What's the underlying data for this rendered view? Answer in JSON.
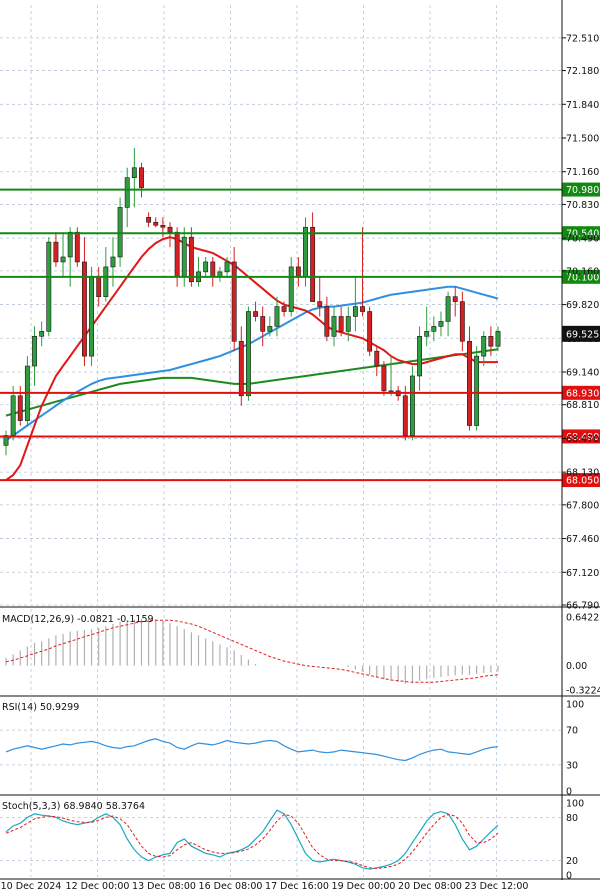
{
  "colors": {
    "bull": "#2e9e3e",
    "bear": "#d42020",
    "ma_fast": "#e01818",
    "ma_mid": "#2f8fe0",
    "ma_slow": "#1e8a1e",
    "grid": "#b9c6d6",
    "support_line": "#e01010",
    "resistance_line": "#128a12",
    "price_label_bg": "#111111",
    "macd_signal": "#e02020",
    "macd_hist": "#b0b0b0",
    "rsi": "#2f8fe0",
    "stoch_k": "#19a9c0",
    "stoch_d": "#e02020"
  },
  "chart_data": {
    "type": "candlestick",
    "instrument_panel": {
      "ylim": [
        66.79,
        72.67
      ],
      "y_ticks": [
        "72.510",
        "72.180",
        "71.840",
        "71.500",
        "71.160",
        "70.830",
        "70.490",
        "70.160",
        "69.820",
        "69.480",
        "69.140",
        "68.810",
        "68.470",
        "68.130",
        "67.800",
        "67.460",
        "67.120",
        "66.790"
      ],
      "x_ticks": [
        "10 Dec 2024",
        "12 Dec 00:00",
        "13 Dec 08:00",
        "16 Dec 08:00",
        "17 Dec 16:00",
        "19 Dec 00:00",
        "20 Dec 08:00",
        "23 Dec 12:00"
      ],
      "current_price": "69.525",
      "candles": [
        [
          68.4,
          68.55,
          68.3,
          68.5
        ],
        [
          68.5,
          69.0,
          68.45,
          68.9
        ],
        [
          68.9,
          69.0,
          68.6,
          68.65
        ],
        [
          68.65,
          69.3,
          68.6,
          69.2
        ],
        [
          69.2,
          69.6,
          69.0,
          69.5
        ],
        [
          69.5,
          69.65,
          69.4,
          69.55
        ],
        [
          69.55,
          70.5,
          69.5,
          70.45
        ],
        [
          70.45,
          70.55,
          70.2,
          70.25
        ],
        [
          70.25,
          70.55,
          70.1,
          70.3
        ],
        [
          70.3,
          70.6,
          70.0,
          70.55
        ],
        [
          70.55,
          70.6,
          70.2,
          70.25
        ],
        [
          70.25,
          70.5,
          69.2,
          69.3
        ],
        [
          69.3,
          70.2,
          69.2,
          70.1
        ],
        [
          70.1,
          70.2,
          69.8,
          69.9
        ],
        [
          69.9,
          70.4,
          69.85,
          70.2
        ],
        [
          70.2,
          70.5,
          70.0,
          70.3
        ],
        [
          70.3,
          70.9,
          70.2,
          70.8
        ],
        [
          70.8,
          71.2,
          70.6,
          71.1
        ],
        [
          71.1,
          71.4,
          70.8,
          71.2
        ],
        [
          71.2,
          71.25,
          70.9,
          71.0
        ],
        [
          70.7,
          70.75,
          70.6,
          70.65
        ],
        [
          70.65,
          70.7,
          70.6,
          70.62
        ],
        [
          70.62,
          70.7,
          70.5,
          70.6
        ],
        [
          70.6,
          70.65,
          70.4,
          70.55
        ],
        [
          70.55,
          70.6,
          70.0,
          70.1
        ],
        [
          70.1,
          70.6,
          70.0,
          70.5
        ],
        [
          70.5,
          70.6,
          70.0,
          70.05
        ],
        [
          70.05,
          70.3,
          70.0,
          70.15
        ],
        [
          70.15,
          70.3,
          70.1,
          70.25
        ],
        [
          70.25,
          70.3,
          70.0,
          70.1
        ],
        [
          70.1,
          70.2,
          70.05,
          70.15
        ],
        [
          70.15,
          70.3,
          70.1,
          70.25
        ],
        [
          70.25,
          70.4,
          69.35,
          69.45
        ],
        [
          69.45,
          69.6,
          68.8,
          68.9
        ],
        [
          68.9,
          69.8,
          68.85,
          69.75
        ],
        [
          69.75,
          69.85,
          69.65,
          69.7
        ],
        [
          69.7,
          69.8,
          69.4,
          69.55
        ],
        [
          69.55,
          69.7,
          69.5,
          69.6
        ],
        [
          69.6,
          69.9,
          69.5,
          69.8
        ],
        [
          69.8,
          69.85,
          69.7,
          69.75
        ],
        [
          69.75,
          70.3,
          69.7,
          70.2
        ],
        [
          70.2,
          70.3,
          70.0,
          70.1
        ],
        [
          70.1,
          70.7,
          70.0,
          70.6
        ],
        [
          70.6,
          70.75,
          69.9,
          69.85
        ],
        [
          69.85,
          70.1,
          69.7,
          69.8
        ],
        [
          69.8,
          69.9,
          69.45,
          69.5
        ],
        [
          69.5,
          69.8,
          69.4,
          69.7
        ],
        [
          69.7,
          69.8,
          69.5,
          69.55
        ],
        [
          69.55,
          69.8,
          69.45,
          69.7
        ],
        [
          69.7,
          70.1,
          69.55,
          69.8
        ],
        [
          69.8,
          70.6,
          69.7,
          69.75
        ],
        [
          69.75,
          69.8,
          69.3,
          69.35
        ],
        [
          69.35,
          69.4,
          69.1,
          69.2
        ],
        [
          69.2,
          69.25,
          68.9,
          68.95
        ],
        [
          68.95,
          69.3,
          68.9,
          68.95
        ],
        [
          68.95,
          69.0,
          68.85,
          68.9
        ],
        [
          68.9,
          69.0,
          68.45,
          68.5
        ],
        [
          68.5,
          69.2,
          68.45,
          69.1
        ],
        [
          69.1,
          69.6,
          68.95,
          69.5
        ],
        [
          69.5,
          69.8,
          69.4,
          69.55
        ],
        [
          69.55,
          69.7,
          69.45,
          69.6
        ],
        [
          69.6,
          69.75,
          69.5,
          69.65
        ],
        [
          69.65,
          69.95,
          69.5,
          69.9
        ],
        [
          69.9,
          70.0,
          69.7,
          69.85
        ],
        [
          69.85,
          69.95,
          69.35,
          69.45
        ],
        [
          69.45,
          69.6,
          68.55,
          68.6
        ],
        [
          68.6,
          69.4,
          68.55,
          69.3
        ],
        [
          69.3,
          69.55,
          69.2,
          69.5
        ],
        [
          69.5,
          69.6,
          69.3,
          69.4
        ],
        [
          69.4,
          69.6,
          69.35,
          69.55
        ]
      ],
      "ma_fast": [
        68.05,
        68.1,
        68.2,
        68.4,
        68.6,
        68.8,
        68.95,
        69.1,
        69.2,
        69.3,
        69.4,
        69.5,
        69.6,
        69.7,
        69.8,
        69.9,
        70.0,
        70.1,
        70.2,
        70.3,
        70.38,
        70.44,
        70.48,
        70.5,
        70.48,
        70.44,
        70.4,
        70.38,
        70.36,
        70.34,
        70.3,
        70.26,
        70.22,
        70.16,
        70.1,
        70.04,
        69.98,
        69.92,
        69.86,
        69.82,
        69.8,
        69.78,
        69.76,
        69.72,
        69.66,
        69.6,
        69.56,
        69.54,
        69.52,
        69.5,
        69.48,
        69.44,
        69.4,
        69.36,
        69.3,
        69.26,
        69.24,
        69.22,
        69.22,
        69.24,
        69.26,
        69.28,
        69.3,
        69.32,
        69.32,
        69.28,
        69.24,
        69.24,
        69.24,
        69.24
      ],
      "ma_mid": [
        68.45,
        68.5,
        68.55,
        68.6,
        68.65,
        68.7,
        68.75,
        68.8,
        68.85,
        68.9,
        68.94,
        68.98,
        69.02,
        69.05,
        69.07,
        69.08,
        69.09,
        69.1,
        69.11,
        69.12,
        69.13,
        69.14,
        69.15,
        69.16,
        69.18,
        69.2,
        69.22,
        69.24,
        69.26,
        69.28,
        69.3,
        69.33,
        69.36,
        69.39,
        69.42,
        69.46,
        69.5,
        69.54,
        69.58,
        69.62,
        69.66,
        69.7,
        69.74,
        69.77,
        69.79,
        69.8,
        69.8,
        69.81,
        69.82,
        69.83,
        69.84,
        69.86,
        69.88,
        69.9,
        69.92,
        69.93,
        69.94,
        69.95,
        69.96,
        69.97,
        69.98,
        69.99,
        70.0,
        70.0,
        69.98,
        69.96,
        69.94,
        69.92,
        69.9,
        69.88
      ],
      "ma_slow": [
        68.7,
        68.72,
        68.74,
        68.76,
        68.78,
        68.8,
        68.82,
        68.84,
        68.86,
        68.88,
        68.9,
        68.92,
        68.94,
        68.96,
        68.98,
        69.0,
        69.02,
        69.03,
        69.04,
        69.05,
        69.06,
        69.07,
        69.08,
        69.08,
        69.08,
        69.08,
        69.08,
        69.07,
        69.06,
        69.05,
        69.04,
        69.03,
        69.02,
        69.02,
        69.02,
        69.03,
        69.04,
        69.05,
        69.06,
        69.07,
        69.08,
        69.09,
        69.1,
        69.11,
        69.12,
        69.13,
        69.14,
        69.15,
        69.16,
        69.17,
        69.18,
        69.19,
        69.2,
        69.21,
        69.22,
        69.23,
        69.24,
        69.25,
        69.26,
        69.27,
        69.28,
        69.29,
        69.3,
        69.31,
        69.32,
        69.33,
        69.34,
        69.35,
        69.36,
        69.37
      ],
      "levels": [
        {
          "value": 70.98,
          "label": "70.980",
          "kind": "resistance"
        },
        {
          "value": 70.54,
          "label": "70.540",
          "kind": "resistance"
        },
        {
          "value": 70.1,
          "label": "70.100",
          "kind": "resistance"
        },
        {
          "value": 68.93,
          "label": "68.930",
          "kind": "support"
        },
        {
          "value": 68.49,
          "label": "68.490",
          "kind": "support"
        },
        {
          "value": 68.05,
          "label": "68.050",
          "kind": "support"
        }
      ]
    },
    "macd": {
      "label": "MACD(12,26,9) -0.0821 -0.1159",
      "ylim": [
        -0.3224,
        0.6422
      ],
      "ticks": [
        "0.6422",
        "0.00",
        "-0.3224"
      ],
      "hist": [
        0.1,
        0.15,
        0.2,
        0.25,
        0.3,
        0.32,
        0.36,
        0.4,
        0.42,
        0.45,
        0.46,
        0.47,
        0.48,
        0.5,
        0.52,
        0.55,
        0.58,
        0.6,
        0.61,
        0.62,
        0.62,
        0.61,
        0.59,
        0.56,
        0.52,
        0.48,
        0.44,
        0.4,
        0.36,
        0.32,
        0.28,
        0.24,
        0.2,
        0.14,
        0.08,
        0.02,
        0.0,
        0.0,
        0.0,
        0.0,
        0.0,
        0.0,
        0.0,
        0.0,
        0.0,
        0.0,
        0.0,
        0.0,
        -0.02,
        -0.05,
        -0.08,
        -0.12,
        -0.15,
        -0.18,
        -0.2,
        -0.22,
        -0.24,
        -0.22,
        -0.2,
        -0.18,
        -0.16,
        -0.15,
        -0.14,
        -0.13,
        -0.12,
        -0.12,
        -0.11,
        -0.1,
        -0.09,
        -0.08
      ],
      "signal": [
        0.05,
        0.07,
        0.1,
        0.13,
        0.16,
        0.19,
        0.22,
        0.26,
        0.29,
        0.32,
        0.35,
        0.38,
        0.41,
        0.44,
        0.47,
        0.5,
        0.52,
        0.54,
        0.56,
        0.58,
        0.59,
        0.6,
        0.6,
        0.6,
        0.59,
        0.57,
        0.55,
        0.52,
        0.48,
        0.44,
        0.4,
        0.36,
        0.32,
        0.28,
        0.24,
        0.2,
        0.16,
        0.12,
        0.09,
        0.06,
        0.04,
        0.02,
        0.0,
        -0.01,
        -0.02,
        -0.03,
        -0.04,
        -0.05,
        -0.07,
        -0.09,
        -0.11,
        -0.13,
        -0.15,
        -0.17,
        -0.19,
        -0.2,
        -0.21,
        -0.22,
        -0.22,
        -0.22,
        -0.22,
        -0.21,
        -0.2,
        -0.19,
        -0.18,
        -0.17,
        -0.16,
        -0.14,
        -0.13,
        -0.12
      ]
    },
    "rsi": {
      "label": "RSI(14) 50.9299",
      "ylim": [
        0,
        100
      ],
      "ticks": [
        "100",
        "70",
        "30",
        "0"
      ],
      "values": [
        45,
        48,
        50,
        52,
        50,
        48,
        50,
        52,
        54,
        53,
        55,
        56,
        57,
        55,
        52,
        50,
        49,
        51,
        52,
        55,
        58,
        60,
        57,
        55,
        50,
        48,
        52,
        55,
        54,
        53,
        55,
        58,
        56,
        55,
        54,
        55,
        57,
        58,
        57,
        52,
        48,
        45,
        46,
        47,
        45,
        44,
        45,
        47,
        46,
        45,
        44,
        43,
        42,
        40,
        38,
        36,
        35,
        38,
        42,
        45,
        47,
        48,
        45,
        44,
        43,
        42,
        45,
        48,
        50,
        51
      ]
    },
    "stoch": {
      "label": "Stoch(5,3,3) 68.9840 58.3764",
      "ylim": [
        0,
        100
      ],
      "ticks": [
        "100",
        "80",
        "20",
        "0"
      ],
      "k": [
        60,
        68,
        72,
        80,
        85,
        83,
        82,
        80,
        75,
        72,
        70,
        72,
        74,
        80,
        85,
        80,
        70,
        50,
        35,
        25,
        20,
        25,
        28,
        30,
        45,
        50,
        40,
        35,
        30,
        28,
        25,
        30,
        32,
        35,
        40,
        50,
        60,
        75,
        90,
        85,
        70,
        50,
        30,
        20,
        18,
        20,
        22,
        20,
        18,
        15,
        10,
        8,
        10,
        12,
        15,
        20,
        30,
        45,
        60,
        75,
        85,
        88,
        85,
        70,
        50,
        35,
        40,
        50,
        60,
        68.98
      ],
      "d": [
        58,
        62,
        66,
        72,
        78,
        80,
        82,
        81,
        79,
        76,
        74,
        73,
        73,
        76,
        80,
        82,
        78,
        70,
        55,
        40,
        30,
        26,
        25,
        27,
        35,
        42,
        45,
        40,
        35,
        32,
        30,
        30,
        31,
        33,
        36,
        42,
        50,
        62,
        75,
        84,
        82,
        72,
        55,
        38,
        28,
        22,
        20,
        20,
        19,
        17,
        13,
        10,
        9,
        10,
        12,
        15,
        22,
        32,
        45,
        58,
        70,
        80,
        84,
        82,
        72,
        55,
        45,
        45,
        50,
        58.38
      ]
    }
  }
}
